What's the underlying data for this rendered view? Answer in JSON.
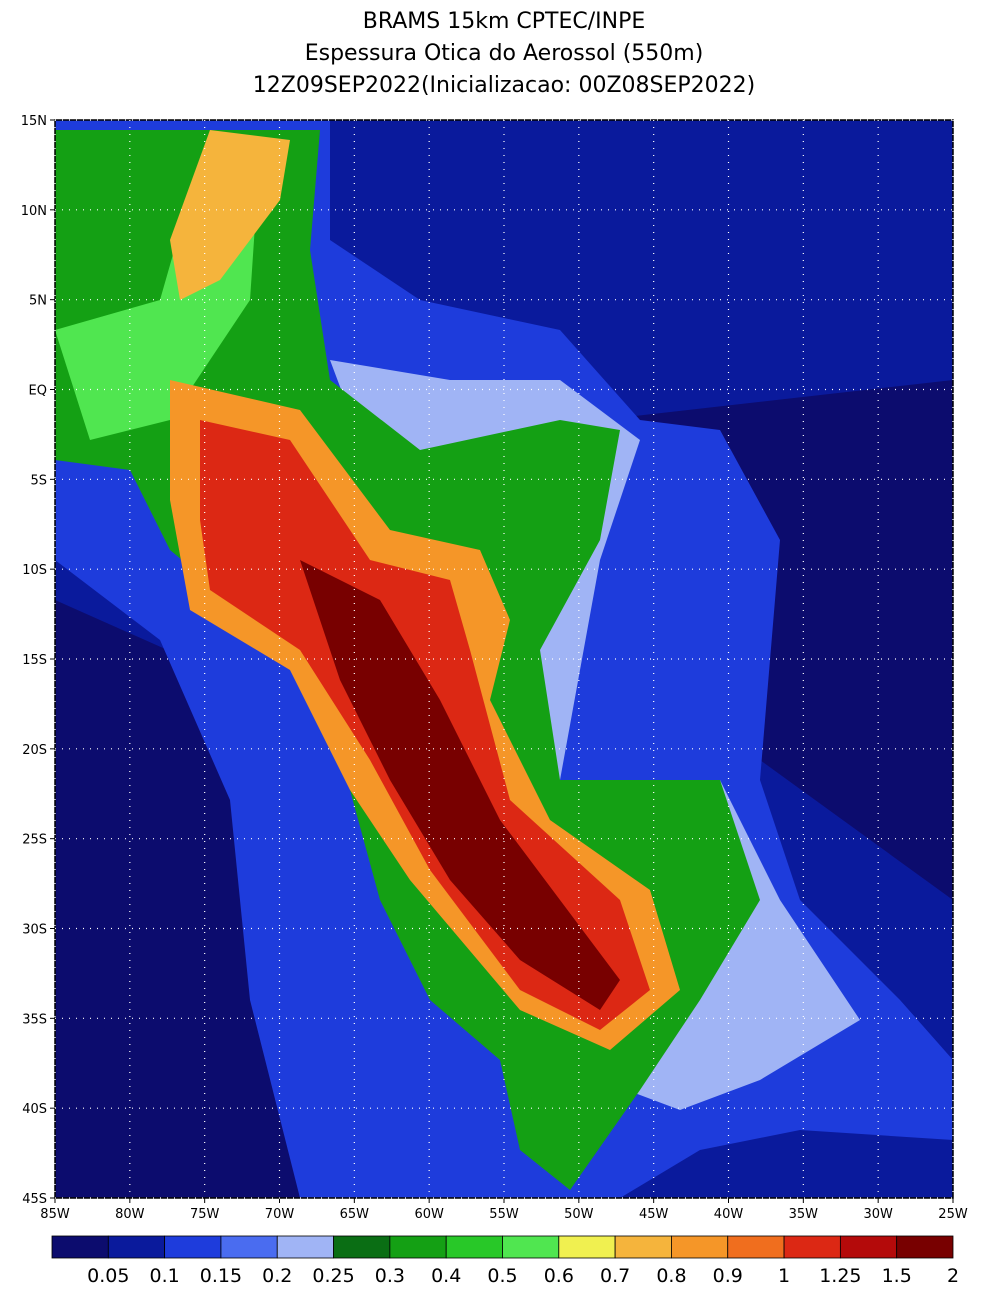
{
  "title": [
    "BRAMS 15km CPTEC/INPE",
    "Espessura Otica do Aerossol (550m)",
    "12Z09SEP2022(Inicializacao: 00Z08SEP2022)"
  ],
  "map": {
    "lonlim": [
      -85,
      -25
    ],
    "latlim": [
      15,
      -45
    ],
    "lon_ticks": [
      {
        "value": -85,
        "label": "85W"
      },
      {
        "value": -80,
        "label": "80W"
      },
      {
        "value": -75,
        "label": "75W"
      },
      {
        "value": -70,
        "label": "70W"
      },
      {
        "value": -65,
        "label": "65W"
      },
      {
        "value": -60,
        "label": "60W"
      },
      {
        "value": -55,
        "label": "55W"
      },
      {
        "value": -50,
        "label": "50W"
      },
      {
        "value": -45,
        "label": "45W"
      },
      {
        "value": -40,
        "label": "40W"
      },
      {
        "value": -35,
        "label": "35W"
      },
      {
        "value": -30,
        "label": "30W"
      },
      {
        "value": -25,
        "label": "25W"
      }
    ],
    "lat_ticks": [
      {
        "value": 15,
        "label": "15N"
      },
      {
        "value": 10,
        "label": "10N"
      },
      {
        "value": 5,
        "label": "5N"
      },
      {
        "value": 0,
        "label": "EQ"
      },
      {
        "value": -5,
        "label": "5S"
      },
      {
        "value": -10,
        "label": "10S"
      },
      {
        "value": -15,
        "label": "15S"
      },
      {
        "value": -20,
        "label": "20S"
      },
      {
        "value": -25,
        "label": "25S"
      },
      {
        "value": -30,
        "label": "30S"
      },
      {
        "value": -35,
        "label": "35S"
      },
      {
        "value": -40,
        "label": "40S"
      },
      {
        "value": -45,
        "label": "45S"
      }
    ]
  },
  "colorbar": {
    "colors": [
      "#0c0c6e",
      "#0a1a9c",
      "#1e3cdc",
      "#4a6cf0",
      "#a0b4f5",
      "#0a6e14",
      "#14a014",
      "#28c828",
      "#50e650",
      "#f0f050",
      "#f5b43c",
      "#f59628",
      "#f06e1e",
      "#dc2814",
      "#b40a0a",
      "#780000"
    ],
    "labels": [
      0.05,
      0.1,
      0.15,
      0.2,
      0.25,
      0.3,
      0.4,
      0.5,
      0.6,
      0.7,
      0.8,
      0.9,
      1,
      1.25,
      1.5,
      2
    ]
  }
}
